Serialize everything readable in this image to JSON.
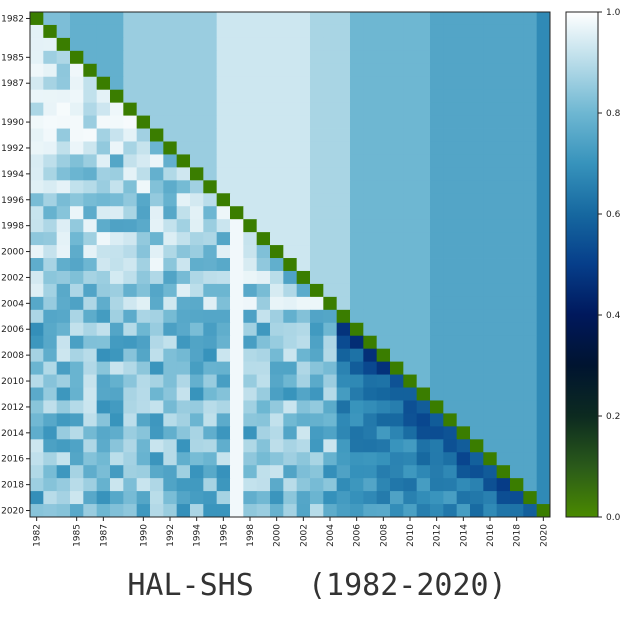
{
  "caption": "HAL-SHS   (1982-2020)",
  "chart_data": {
    "type": "heatmap",
    "title": "",
    "xlabel": "",
    "ylabel": "",
    "years": [
      1982,
      1983,
      1984,
      1985,
      1986,
      1987,
      1988,
      1989,
      1990,
      1991,
      1992,
      1993,
      1994,
      1995,
      1996,
      1997,
      1998,
      1999,
      2000,
      2001,
      2002,
      2003,
      2004,
      2005,
      2006,
      2007,
      2008,
      2009,
      2010,
      2011,
      2012,
      2013,
      2014,
      2015,
      2016,
      2017,
      2018,
      2019,
      2020
    ],
    "x_tick_labels": [
      "1982",
      "1985",
      "1987",
      "1990",
      "1992",
      "1994",
      "1996",
      "1998",
      "2000",
      "2002",
      "2004",
      "2006",
      "2008",
      "2010",
      "2012",
      "2014",
      "2016",
      "2018",
      "2020"
    ],
    "y_tick_labels": [
      "1982",
      "1985",
      "1987",
      "1990",
      "1992",
      "1994",
      "1996",
      "1998",
      "2000",
      "2002",
      "2004",
      "2006",
      "2008",
      "2010",
      "2012",
      "2014",
      "2016",
      "2018",
      "2020"
    ],
    "diagonal_color": "#3a7d00",
    "upper_blocks": [
      {
        "from": 1982,
        "to": 1984,
        "value": 0.82
      },
      {
        "from": 1985,
        "to": 1988,
        "value": 0.78
      },
      {
        "from": 1989,
        "to": 1989,
        "value": 0.86
      },
      {
        "from": 1990,
        "to": 1995,
        "value": 0.86
      },
      {
        "from": 1996,
        "to": 2002,
        "value": 0.93
      },
      {
        "from": 2003,
        "to": 2005,
        "value": 0.88
      },
      {
        "from": 2006,
        "to": 2011,
        "value": 0.8
      },
      {
        "from": 2012,
        "to": 2019,
        "value": 0.75
      },
      {
        "from": 2020,
        "to": 2020,
        "value": 0.68
      }
    ],
    "colorbar": {
      "min": 0.0,
      "max": 1.0,
      "ticks": [
        "0.0",
        "0.2",
        "0.4",
        "0.6",
        "0.8",
        "1.0"
      ],
      "stops": [
        {
          "v": 0.0,
          "color": "#4a8a00"
        },
        {
          "v": 0.1,
          "color": "#2a5a1a"
        },
        {
          "v": 0.2,
          "color": "#0c2a20"
        },
        {
          "v": 0.3,
          "color": "#001430"
        },
        {
          "v": 0.4,
          "color": "#00185c"
        },
        {
          "v": 0.5,
          "color": "#063e8a"
        },
        {
          "v": 0.6,
          "color": "#1668a0"
        },
        {
          "v": 0.7,
          "color": "#3793bc"
        },
        {
          "v": 0.8,
          "color": "#6eb7d2"
        },
        {
          "v": 0.9,
          "color": "#b8dce9"
        },
        {
          "v": 1.0,
          "color": "#ffffff"
        }
      ]
    }
  }
}
